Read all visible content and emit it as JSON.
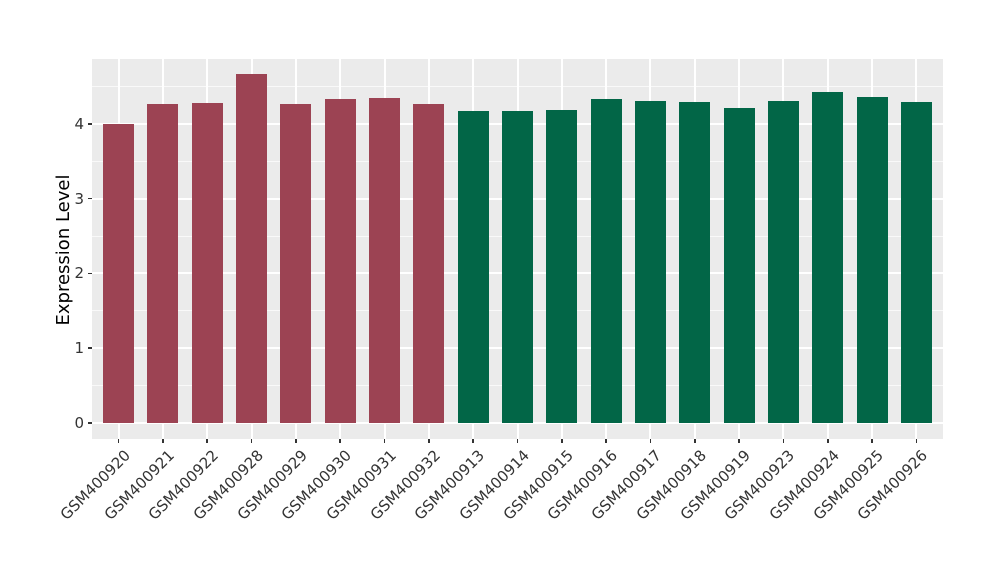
{
  "chart_data": {
    "type": "bar",
    "title": "",
    "xlabel": "",
    "ylabel": "Expression Level",
    "categories": [
      "GSM400920",
      "GSM400921",
      "GSM400922",
      "GSM400928",
      "GSM400929",
      "GSM400930",
      "GSM400931",
      "GSM400932",
      "GSM400913",
      "GSM400914",
      "GSM400915",
      "GSM400916",
      "GSM400917",
      "GSM400918",
      "GSM400919",
      "GSM400923",
      "GSM400924",
      "GSM400925",
      "GSM400926"
    ],
    "values": [
      4.0,
      4.26,
      4.28,
      4.67,
      4.27,
      4.33,
      4.34,
      4.26,
      4.17,
      4.17,
      4.18,
      4.33,
      4.31,
      4.29,
      4.21,
      4.31,
      4.42,
      4.36,
      4.29
    ],
    "groups": [
      "maroon",
      "maroon",
      "maroon",
      "maroon",
      "maroon",
      "maroon",
      "maroon",
      "maroon",
      "green",
      "green",
      "green",
      "green",
      "green",
      "green",
      "green",
      "green",
      "green",
      "green",
      "green"
    ],
    "group_colors": {
      "maroon": "#9C4353",
      "green": "#026647"
    },
    "yticks": [
      0,
      1,
      2,
      3,
      4
    ],
    "minor_gridlines": [
      0.5,
      1.5,
      2.5,
      3.5,
      4.5
    ],
    "ylim": [
      -0.2,
      4.87
    ],
    "legend": "none",
    "style": {
      "panel_bg": "#EBEBEB",
      "gridline_color": "#FFFFFF",
      "axis_text_color": "#333333"
    }
  }
}
